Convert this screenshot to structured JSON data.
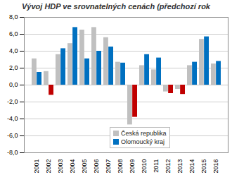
{
  "chart_data": {
    "type": "bar",
    "title": "Vývoj HDP ve srovnatelných cenách (předchozí rok",
    "categories": [
      "2001",
      "2002",
      "2003",
      "2004",
      "2005",
      "2006",
      "2007",
      "2008",
      "2009",
      "2010",
      "2011",
      "2012",
      "2013",
      "2014",
      "2015",
      "2016"
    ],
    "series": [
      {
        "name": "Česká republika",
        "color": "#c0c0c0",
        "values": [
          3.1,
          1.6,
          3.6,
          4.9,
          6.5,
          6.8,
          5.6,
          2.7,
          -4.7,
          2.3,
          1.8,
          -0.8,
          -0.5,
          2.3,
          5.4,
          2.5
        ]
      },
      {
        "name": "Olomoucký kraj",
        "color": "#0070c0",
        "values": [
          1.5,
          -1.2,
          4.3,
          6.8,
          3.1,
          4.0,
          4.5,
          2.6,
          -3.8,
          3.6,
          3.2,
          -1.0,
          -1.1,
          2.7,
          5.7,
          2.8
        ],
        "colors": [
          "#0070c0",
          "#c00000",
          "#0070c0",
          "#0070c0",
          "#0070c0",
          "#0070c0",
          "#0070c0",
          "#0070c0",
          "#c00000",
          "#0070c0",
          "#0070c0",
          "#c00000",
          "#c00000",
          "#0070c0",
          "#0070c0",
          "#0070c0"
        ]
      }
    ],
    "ylim": [
      -8,
      8
    ],
    "yticks": [
      {
        "value": -8,
        "label": "-8,0"
      },
      {
        "value": -6,
        "label": "-6,0"
      },
      {
        "value": -4,
        "label": "-4,0"
      },
      {
        "value": -2,
        "label": "-2,0"
      },
      {
        "value": 0,
        "label": "0,0"
      },
      {
        "value": 2,
        "label": "2,0"
      },
      {
        "value": 4,
        "label": "4,0"
      },
      {
        "value": 6,
        "label": "6,0"
      },
      {
        "value": 8,
        "label": "8,0"
      }
    ],
    "grid": true,
    "legend": "lower center"
  }
}
